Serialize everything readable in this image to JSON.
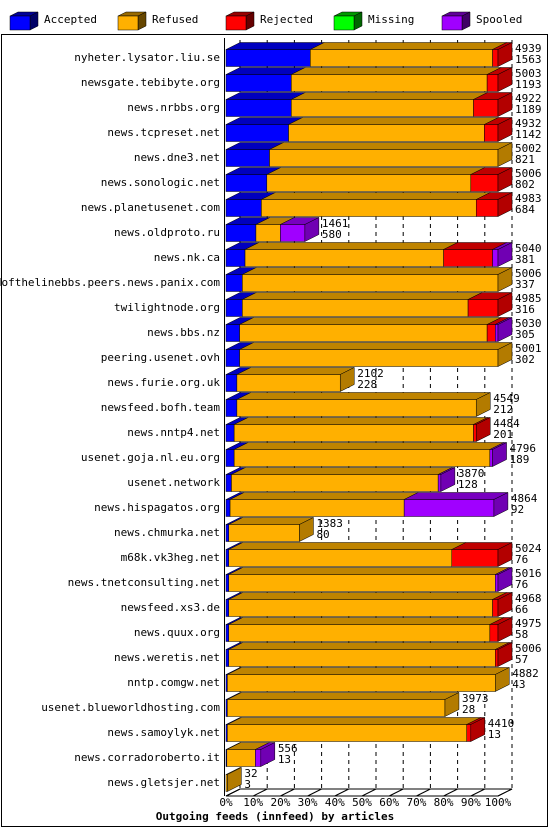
{
  "chart_data": {
    "type": "bar",
    "orientation": "horizontal",
    "stacked": true,
    "x_label": "Outgoing feeds (innfeed) by articles",
    "categories": [
      "nyheter.lysator.liu.se",
      "newsgate.tebibyte.org",
      "news.nrbbs.org",
      "news.tcpreset.net",
      "news.dne3.net",
      "news.sonologic.net",
      "news.planetusenet.com",
      "news.oldproto.ru",
      "news.nk.ca",
      "endofthelinebbs.peers.news.panix.com",
      "twilightnode.org",
      "news.bbs.nz",
      "peering.usenet.ovh",
      "news.furie.org.uk",
      "newsfeed.bofh.team",
      "news.nntp4.net",
      "usenet.goja.nl.eu.org",
      "usenet.network",
      "news.hispagatos.org",
      "news.chmurka.net",
      "m68k.vk3heg.net",
      "news.tnetconsulting.net",
      "newsfeed.xs3.de",
      "news.quux.org",
      "news.weretis.net",
      "nntp.comgw.net",
      "usenet.blueworldhosting.com",
      "news.samoylyk.net",
      "news.corradoroberto.it",
      "news.gletsjer.net"
    ],
    "series": [
      {
        "name": "Accepted",
        "color": "#0000ff",
        "values": [
          31,
          24,
          24,
          23,
          16,
          15,
          13,
          11,
          7,
          6,
          6,
          5,
          5,
          4,
          4,
          3,
          3,
          2,
          1.5,
          1,
          1,
          1,
          1,
          1,
          1,
          0.5,
          0.5,
          0.5,
          0.3,
          0
        ]
      },
      {
        "name": "Refused",
        "color": "#ffb000",
        "values": [
          67,
          72,
          67,
          72,
          84,
          75,
          79,
          9,
          73,
          94,
          83,
          91,
          95,
          38,
          88,
          88,
          94,
          76,
          64,
          26,
          82,
          98,
          97,
          96,
          98,
          98.5,
          80,
          88,
          10.5,
          0.5
        ]
      },
      {
        "name": "Rejected",
        "color": "#ff0000",
        "values": [
          2,
          4,
          9,
          5,
          0,
          10,
          8,
          0,
          18,
          0,
          11,
          3,
          0,
          0,
          0,
          1,
          0,
          0,
          0,
          0,
          17,
          0,
          2,
          3,
          1,
          0,
          0,
          1.5,
          0,
          0
        ]
      },
      {
        "name": "Missing",
        "color": "#00ff00",
        "values": [
          0,
          0,
          0,
          0,
          0,
          0,
          0,
          0,
          0,
          0,
          0,
          0,
          0,
          0,
          0,
          0,
          0,
          0,
          0,
          0,
          0,
          0,
          0,
          0,
          0,
          0,
          0,
          0,
          0,
          0
        ]
      },
      {
        "name": "Spooled",
        "color": "#a000ff",
        "values": [
          0,
          0,
          0,
          0,
          0,
          0,
          0,
          9,
          2,
          0,
          0,
          1,
          0,
          0,
          0,
          0,
          1,
          1,
          33,
          0,
          0,
          1,
          0,
          0,
          0,
          0,
          0,
          0,
          2,
          0
        ]
      }
    ],
    "bar_labels": [
      [
        4939,
        1563
      ],
      [
        5003,
        1193
      ],
      [
        4922,
        1189
      ],
      [
        4932,
        1142
      ],
      [
        5002,
        821
      ],
      [
        5006,
        802
      ],
      [
        4983,
        684
      ],
      [
        1461,
        580
      ],
      [
        5040,
        381
      ],
      [
        5006,
        337
      ],
      [
        4985,
        316
      ],
      [
        5030,
        305
      ],
      [
        5001,
        302
      ],
      [
        2102,
        228
      ],
      [
        4549,
        212
      ],
      [
        4484,
        201
      ],
      [
        4796,
        189
      ],
      [
        3870,
        128
      ],
      [
        4864,
        92
      ],
      [
        1383,
        80
      ],
      [
        5024,
        76
      ],
      [
        5016,
        76
      ],
      [
        4968,
        66
      ],
      [
        4975,
        58
      ],
      [
        5006,
        57
      ],
      [
        4882,
        43
      ],
      [
        3973,
        28
      ],
      [
        4410,
        13
      ],
      [
        556,
        13
      ],
      [
        32,
        3
      ]
    ],
    "xlim": [
      0,
      100
    ],
    "xticks": [
      {
        "value": 0,
        "label": "0%"
      },
      {
        "value": 10,
        "label": "10%"
      },
      {
        "value": 20,
        "label": "20%"
      },
      {
        "value": 30,
        "label": "30%"
      },
      {
        "value": 40,
        "label": "40%"
      },
      {
        "value": 50,
        "label": "50%"
      },
      {
        "value": 60,
        "label": "60%"
      },
      {
        "value": 70,
        "label": "70%"
      },
      {
        "value": 80,
        "label": "80%"
      },
      {
        "value": 90,
        "label": "90%"
      },
      {
        "value": 100,
        "label": "100%"
      }
    ],
    "grid": true
  }
}
